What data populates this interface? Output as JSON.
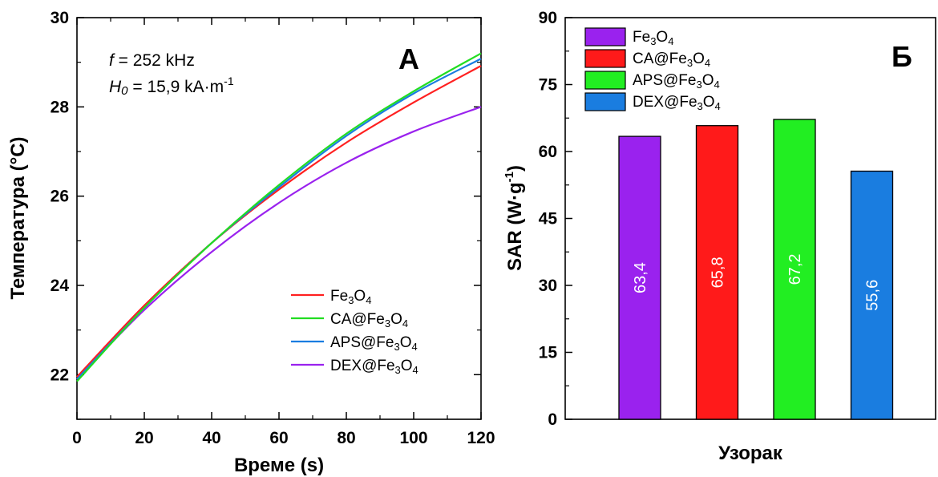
{
  "chart_data": [
    {
      "type": "line",
      "panel_label": "A",
      "xlabel": "Време (s)",
      "ylabel": "Температура (°C)",
      "xlim": [
        0,
        120
      ],
      "ylim": [
        21,
        30
      ],
      "xticks": [
        "0",
        "20",
        "40",
        "60",
        "80",
        "100",
        "120"
      ],
      "yticks": [
        "22",
        "24",
        "26",
        "28",
        "30"
      ],
      "annotation": {
        "freq_symbol": "f",
        "freq_value": " = 252 kHz",
        "field_symbol": "H",
        "field_subscript": "0",
        "field_value": " = 15,9 kA·m",
        "field_exponent": "-1"
      },
      "legend_position": "bottom-right",
      "x": [
        0,
        20,
        40,
        60,
        80,
        100,
        120
      ],
      "series": [
        {
          "name": "Fe₃O₄",
          "color": "#ff2020",
          "values": [
            21.95,
            23.55,
            24.95,
            26.15,
            27.2,
            28.1,
            28.92
          ]
        },
        {
          "name": "CA@Fe₃O₄",
          "color": "#22dd22",
          "values": [
            21.85,
            23.5,
            24.95,
            26.25,
            27.4,
            28.35,
            29.2
          ]
        },
        {
          "name": "APS@Fe₃O₄",
          "color": "#1a7de0",
          "values": [
            21.9,
            23.5,
            24.95,
            26.2,
            27.35,
            28.3,
            29.08
          ]
        },
        {
          "name": "DEX@Fe₃O₄",
          "color": "#9a22ee",
          "values": [
            21.9,
            23.45,
            24.75,
            25.85,
            26.75,
            27.45,
            28.0
          ]
        }
      ]
    },
    {
      "type": "bar",
      "panel_label": "Б",
      "xlabel": "Узорак",
      "ylabel": "SAR (W·g",
      "ylabel_exponent": "-1",
      "ylabel_close": ")",
      "ylim": [
        0,
        90
      ],
      "yticks": [
        "0",
        "15",
        "30",
        "45",
        "60",
        "75",
        "90"
      ],
      "legend_position": "top-left",
      "categories": [
        "Fe₃O₄",
        "CA@Fe₃O₄",
        "APS@Fe₃O₄",
        "DEX@Fe₃O₄"
      ],
      "values": [
        63.4,
        65.8,
        67.2,
        55.6
      ],
      "value_labels": [
        "63,4",
        "65,8",
        "67,2",
        "55,6"
      ],
      "colors": [
        "#9a22ee",
        "#ff1a1a",
        "#22ee22",
        "#1a7de0"
      ]
    }
  ]
}
